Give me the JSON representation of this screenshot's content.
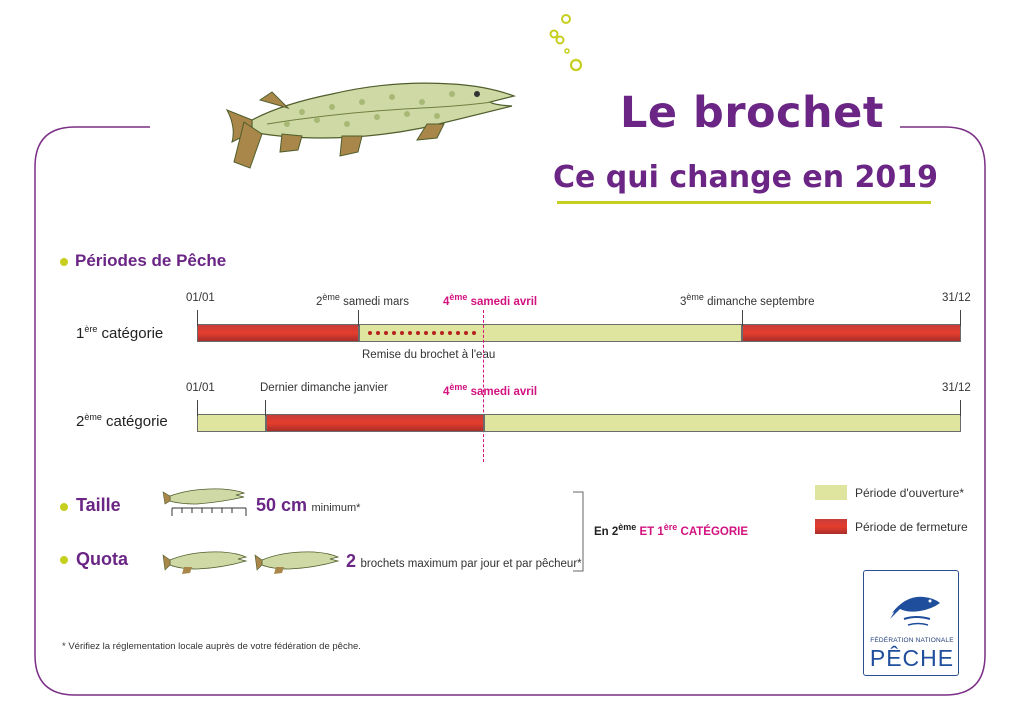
{
  "header": {
    "title": "Le brochet",
    "subtitle": "Ce qui change en 2019"
  },
  "sections": {
    "periods": "Périodes de Pêche",
    "size": "Taille",
    "quota": "Quota"
  },
  "cat1": {
    "num": "1",
    "sup": "ère",
    "word": "catégorie",
    "start": "01/01",
    "mars_sup": "ème",
    "mars": "samedi mars",
    "mars_num": "2",
    "avril_num": "4",
    "avril_sup": "ème",
    "avril": "samedi avril",
    "sept_num": "3",
    "sept_sup": "ème",
    "sept": "dimanche septembre",
    "end": "31/12",
    "remise": "Remise du brochet à l'eau"
  },
  "cat2": {
    "num": "2",
    "sup": "ème",
    "word": "catégorie",
    "start": "01/01",
    "janv": "Dernier dimanche janvier",
    "avril_num": "4",
    "avril_sup": "ème",
    "avril": "samedi avril",
    "end": "31/12"
  },
  "size": {
    "value": "50 cm",
    "suffix": "minimum*"
  },
  "quota": {
    "value": "2",
    "text": "brochets maximum par jour et par pêcheur*"
  },
  "scope": {
    "prefix": "En 2",
    "sup1": "ème",
    "middle": " ET 1",
    "sup2": "ère",
    "suffix": " CATÉGORIE"
  },
  "legend": {
    "open": "Période d'ouverture*",
    "closed": "Période de fermeture"
  },
  "footnote": "* Vérifiez la réglementation locale auprès de votre fédération de pêche.",
  "logo": {
    "line1": "FÉDÉRATION NATIONALE",
    "line2": "PÊCHE"
  },
  "colors": {
    "purple": "#6a2585",
    "accent_green": "#c7cf1e",
    "open": "#dfe49e",
    "closed": "#d6382e",
    "magenta": "#d2127f"
  },
  "icons": [
    "pike-fish-illustration",
    "bubbles-icon",
    "ruler-icon",
    "fish-logo-icon"
  ]
}
